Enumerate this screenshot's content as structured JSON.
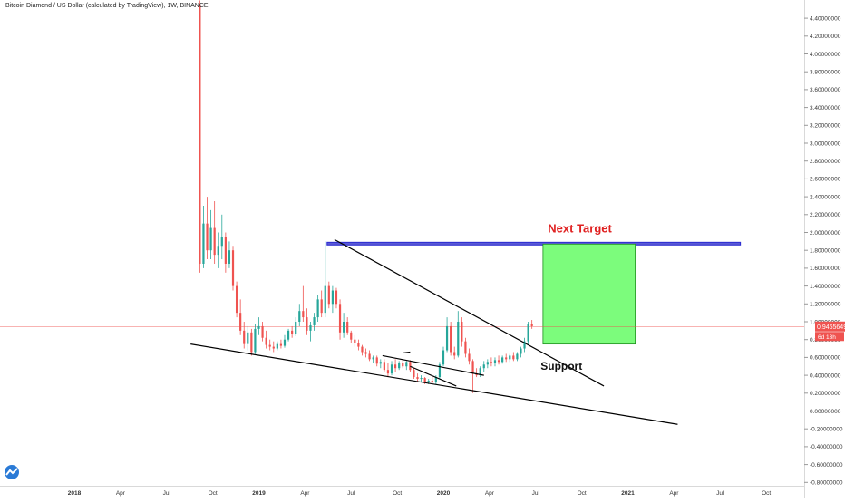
{
  "chart_data": {
    "type": "candlestick",
    "title": "Bitcoin Diamond / US Dollar (calculated by TradingView), 1W, BINANCE",
    "ylim": [
      -0.8,
      4.5
    ],
    "y_ticks": [
      4.4,
      4.2,
      4.0,
      3.8,
      3.6,
      3.4,
      3.2,
      3.0,
      2.8,
      2.6,
      2.4,
      2.2,
      2.0,
      1.8,
      1.6,
      1.4,
      1.2,
      1.0,
      0.8,
      0.6,
      0.4,
      0.2,
      0.0,
      -0.2,
      -0.4,
      -0.6,
      -0.8
    ],
    "y_tick_labels": [
      "4.40000000",
      "4.20000000",
      "4.00000000",
      "3.80000000",
      "3.60000000",
      "3.40000000",
      "3.20000000",
      "3.00000000",
      "2.80000000",
      "2.60000000",
      "2.40000000",
      "2.20000000",
      "2.00000000",
      "1.80000000",
      "1.60000000",
      "1.40000000",
      "1.20000000",
      "1.00000000",
      "0.80000000",
      "0.60000000",
      "0.40000000",
      "0.20000000",
      "0.00000000",
      "-0.20000000",
      "-0.40000000",
      "-0.60000000",
      "-0.80000000"
    ],
    "x_ticks": [
      {
        "label": "2018",
        "t": 2018.0,
        "year": true
      },
      {
        "label": "Apr",
        "t": 2018.25
      },
      {
        "label": "Jul",
        "t": 2018.5
      },
      {
        "label": "Oct",
        "t": 2018.75
      },
      {
        "label": "2019",
        "t": 2019.0,
        "year": true
      },
      {
        "label": "Apr",
        "t": 2019.25
      },
      {
        "label": "Jul",
        "t": 2019.5
      },
      {
        "label": "Oct",
        "t": 2019.75
      },
      {
        "label": "2020",
        "t": 2020.0,
        "year": true
      },
      {
        "label": "Apr",
        "t": 2020.25
      },
      {
        "label": "Jul",
        "t": 2020.5
      },
      {
        "label": "Oct",
        "t": 2020.75
      },
      {
        "label": "2021",
        "t": 2021.0,
        "year": true
      },
      {
        "label": "Apr",
        "t": 2021.25
      },
      {
        "label": "Jul",
        "t": 2021.5
      },
      {
        "label": "Oct",
        "t": 2021.75
      }
    ],
    "candles": [
      {
        "t": 2018.68,
        "o": 4.55,
        "h": 4.6,
        "l": 1.55,
        "c": 1.65
      },
      {
        "t": 2018.7,
        "o": 1.65,
        "h": 2.3,
        "l": 1.6,
        "c": 2.1
      },
      {
        "t": 2018.72,
        "o": 2.1,
        "h": 2.4,
        "l": 1.7,
        "c": 1.8
      },
      {
        "t": 2018.74,
        "o": 1.8,
        "h": 2.25,
        "l": 1.7,
        "c": 2.05
      },
      {
        "t": 2018.76,
        "o": 2.05,
        "h": 2.35,
        "l": 1.65,
        "c": 1.75
      },
      {
        "t": 2018.78,
        "o": 1.75,
        "h": 2.0,
        "l": 1.6,
        "c": 1.85
      },
      {
        "t": 2018.8,
        "o": 1.85,
        "h": 2.2,
        "l": 1.7,
        "c": 1.95
      },
      {
        "t": 2018.82,
        "o": 1.95,
        "h": 2.0,
        "l": 1.55,
        "c": 1.65
      },
      {
        "t": 2018.84,
        "o": 1.65,
        "h": 1.9,
        "l": 1.6,
        "c": 1.8
      },
      {
        "t": 2018.86,
        "o": 1.8,
        "h": 1.85,
        "l": 1.35,
        "c": 1.4
      },
      {
        "t": 2018.88,
        "o": 1.4,
        "h": 1.45,
        "l": 1.05,
        "c": 1.1
      },
      {
        "t": 2018.9,
        "o": 1.1,
        "h": 1.25,
        "l": 0.85,
        "c": 0.9
      },
      {
        "t": 2018.92,
        "o": 0.9,
        "h": 1.0,
        "l": 0.7,
        "c": 0.75
      },
      {
        "t": 2018.94,
        "o": 0.75,
        "h": 0.95,
        "l": 0.68,
        "c": 0.88
      },
      {
        "t": 2018.96,
        "o": 0.88,
        "h": 0.92,
        "l": 0.62,
        "c": 0.66
      },
      {
        "t": 2018.98,
        "o": 0.66,
        "h": 0.98,
        "l": 0.64,
        "c": 0.92
      },
      {
        "t": 2019.0,
        "o": 0.92,
        "h": 1.05,
        "l": 0.85,
        "c": 0.95
      },
      {
        "t": 2019.02,
        "o": 0.95,
        "h": 1.0,
        "l": 0.78,
        "c": 0.82
      },
      {
        "t": 2019.04,
        "o": 0.82,
        "h": 0.9,
        "l": 0.7,
        "c": 0.74
      },
      {
        "t": 2019.06,
        "o": 0.74,
        "h": 0.8,
        "l": 0.68,
        "c": 0.72
      },
      {
        "t": 2019.08,
        "o": 0.72,
        "h": 0.78,
        "l": 0.66,
        "c": 0.7
      },
      {
        "t": 2019.1,
        "o": 0.7,
        "h": 0.78,
        "l": 0.68,
        "c": 0.75
      },
      {
        "t": 2019.12,
        "o": 0.75,
        "h": 0.8,
        "l": 0.7,
        "c": 0.73
      },
      {
        "t": 2019.14,
        "o": 0.73,
        "h": 0.85,
        "l": 0.71,
        "c": 0.8
      },
      {
        "t": 2019.16,
        "o": 0.8,
        "h": 0.92,
        "l": 0.78,
        "c": 0.9
      },
      {
        "t": 2019.18,
        "o": 0.9,
        "h": 0.95,
        "l": 0.82,
        "c": 0.86
      },
      {
        "t": 2019.2,
        "o": 0.86,
        "h": 1.05,
        "l": 0.84,
        "c": 1.0
      },
      {
        "t": 2019.22,
        "o": 1.0,
        "h": 1.2,
        "l": 0.95,
        "c": 1.12
      },
      {
        "t": 2019.24,
        "o": 1.12,
        "h": 1.4,
        "l": 1.0,
        "c": 1.05
      },
      {
        "t": 2019.26,
        "o": 1.05,
        "h": 1.15,
        "l": 0.85,
        "c": 0.9
      },
      {
        "t": 2019.28,
        "o": 0.9,
        "h": 1.0,
        "l": 0.78,
        "c": 0.96
      },
      {
        "t": 2019.3,
        "o": 0.96,
        "h": 1.1,
        "l": 0.9,
        "c": 1.05
      },
      {
        "t": 2019.32,
        "o": 1.05,
        "h": 1.3,
        "l": 1.0,
        "c": 1.25
      },
      {
        "t": 2019.34,
        "o": 1.25,
        "h": 1.35,
        "l": 1.05,
        "c": 1.1
      },
      {
        "t": 2019.36,
        "o": 1.1,
        "h": 1.9,
        "l": 1.05,
        "c": 1.4
      },
      {
        "t": 2019.38,
        "o": 1.4,
        "h": 1.45,
        "l": 1.15,
        "c": 1.2
      },
      {
        "t": 2019.4,
        "o": 1.2,
        "h": 1.4,
        "l": 1.1,
        "c": 1.35
      },
      {
        "t": 2019.42,
        "o": 1.35,
        "h": 1.38,
        "l": 1.15,
        "c": 1.2
      },
      {
        "t": 2019.44,
        "o": 1.2,
        "h": 1.25,
        "l": 0.8,
        "c": 0.88
      },
      {
        "t": 2019.46,
        "o": 0.88,
        "h": 1.1,
        "l": 0.82,
        "c": 1.0
      },
      {
        "t": 2019.48,
        "o": 1.0,
        "h": 1.05,
        "l": 0.85,
        "c": 0.88
      },
      {
        "t": 2019.5,
        "o": 0.88,
        "h": 0.9,
        "l": 0.76,
        "c": 0.8
      },
      {
        "t": 2019.52,
        "o": 0.8,
        "h": 0.85,
        "l": 0.72,
        "c": 0.76
      },
      {
        "t": 2019.54,
        "o": 0.76,
        "h": 0.8,
        "l": 0.68,
        "c": 0.72
      },
      {
        "t": 2019.56,
        "o": 0.72,
        "h": 0.74,
        "l": 0.62,
        "c": 0.66
      },
      {
        "t": 2019.58,
        "o": 0.66,
        "h": 0.7,
        "l": 0.6,
        "c": 0.64
      },
      {
        "t": 2019.6,
        "o": 0.64,
        "h": 0.68,
        "l": 0.56,
        "c": 0.58
      },
      {
        "t": 2019.62,
        "o": 0.58,
        "h": 0.62,
        "l": 0.54,
        "c": 0.6
      },
      {
        "t": 2019.64,
        "o": 0.6,
        "h": 0.62,
        "l": 0.5,
        "c": 0.53
      },
      {
        "t": 2019.66,
        "o": 0.53,
        "h": 0.58,
        "l": 0.48,
        "c": 0.55
      },
      {
        "t": 2019.68,
        "o": 0.55,
        "h": 0.58,
        "l": 0.44,
        "c": 0.46
      },
      {
        "t": 2019.7,
        "o": 0.46,
        "h": 0.54,
        "l": 0.38,
        "c": 0.42
      },
      {
        "t": 2019.72,
        "o": 0.42,
        "h": 0.56,
        "l": 0.4,
        "c": 0.52
      },
      {
        "t": 2019.74,
        "o": 0.52,
        "h": 0.58,
        "l": 0.44,
        "c": 0.48
      },
      {
        "t": 2019.76,
        "o": 0.48,
        "h": 0.56,
        "l": 0.46,
        "c": 0.54
      },
      {
        "t": 2019.78,
        "o": 0.54,
        "h": 0.58,
        "l": 0.48,
        "c": 0.5
      },
      {
        "t": 2019.8,
        "o": 0.5,
        "h": 0.56,
        "l": 0.46,
        "c": 0.55
      },
      {
        "t": 2019.82,
        "o": 0.55,
        "h": 0.57,
        "l": 0.44,
        "c": 0.46
      },
      {
        "t": 2019.84,
        "o": 0.46,
        "h": 0.48,
        "l": 0.36,
        "c": 0.38
      },
      {
        "t": 2019.86,
        "o": 0.38,
        "h": 0.42,
        "l": 0.32,
        "c": 0.36
      },
      {
        "t": 2019.88,
        "o": 0.36,
        "h": 0.4,
        "l": 0.32,
        "c": 0.37
      },
      {
        "t": 2019.9,
        "o": 0.37,
        "h": 0.38,
        "l": 0.3,
        "c": 0.33
      },
      {
        "t": 2019.92,
        "o": 0.33,
        "h": 0.36,
        "l": 0.3,
        "c": 0.34
      },
      {
        "t": 2019.94,
        "o": 0.34,
        "h": 0.38,
        "l": 0.31,
        "c": 0.32
      },
      {
        "t": 2019.96,
        "o": 0.32,
        "h": 0.4,
        "l": 0.3,
        "c": 0.38
      },
      {
        "t": 2019.98,
        "o": 0.38,
        "h": 0.55,
        "l": 0.36,
        "c": 0.52
      },
      {
        "t": 2020.0,
        "o": 0.52,
        "h": 0.72,
        "l": 0.5,
        "c": 0.68
      },
      {
        "t": 2020.02,
        "o": 0.68,
        "h": 1.05,
        "l": 0.66,
        "c": 0.95
      },
      {
        "t": 2020.04,
        "o": 0.95,
        "h": 1.0,
        "l": 0.62,
        "c": 0.66
      },
      {
        "t": 2020.06,
        "o": 0.66,
        "h": 0.72,
        "l": 0.58,
        "c": 0.62
      },
      {
        "t": 2020.08,
        "o": 0.62,
        "h": 1.12,
        "l": 0.6,
        "c": 1.0
      },
      {
        "t": 2020.1,
        "o": 1.0,
        "h": 1.05,
        "l": 0.72,
        "c": 0.78
      },
      {
        "t": 2020.12,
        "o": 0.78,
        "h": 0.82,
        "l": 0.6,
        "c": 0.64
      },
      {
        "t": 2020.14,
        "o": 0.64,
        "h": 0.7,
        "l": 0.52,
        "c": 0.56
      },
      {
        "t": 2020.16,
        "o": 0.56,
        "h": 0.58,
        "l": 0.2,
        "c": 0.42
      },
      {
        "t": 2020.18,
        "o": 0.42,
        "h": 0.48,
        "l": 0.38,
        "c": 0.4
      },
      {
        "t": 2020.2,
        "o": 0.4,
        "h": 0.5,
        "l": 0.38,
        "c": 0.48
      },
      {
        "t": 2020.22,
        "o": 0.48,
        "h": 0.56,
        "l": 0.44,
        "c": 0.52
      },
      {
        "t": 2020.24,
        "o": 0.52,
        "h": 0.58,
        "l": 0.48,
        "c": 0.55
      },
      {
        "t": 2020.26,
        "o": 0.55,
        "h": 0.6,
        "l": 0.5,
        "c": 0.54
      },
      {
        "t": 2020.28,
        "o": 0.54,
        "h": 0.6,
        "l": 0.5,
        "c": 0.57
      },
      {
        "t": 2020.3,
        "o": 0.57,
        "h": 0.62,
        "l": 0.52,
        "c": 0.55
      },
      {
        "t": 2020.32,
        "o": 0.55,
        "h": 0.62,
        "l": 0.53,
        "c": 0.6
      },
      {
        "t": 2020.34,
        "o": 0.6,
        "h": 0.64,
        "l": 0.55,
        "c": 0.58
      },
      {
        "t": 2020.36,
        "o": 0.58,
        "h": 0.64,
        "l": 0.55,
        "c": 0.62
      },
      {
        "t": 2020.38,
        "o": 0.62,
        "h": 0.66,
        "l": 0.56,
        "c": 0.58
      },
      {
        "t": 2020.4,
        "o": 0.58,
        "h": 0.66,
        "l": 0.56,
        "c": 0.64
      },
      {
        "t": 2020.42,
        "o": 0.64,
        "h": 0.72,
        "l": 0.6,
        "c": 0.7
      },
      {
        "t": 2020.44,
        "o": 0.7,
        "h": 0.82,
        "l": 0.66,
        "c": 0.78
      },
      {
        "t": 2020.46,
        "o": 0.78,
        "h": 1.0,
        "l": 0.75,
        "c": 0.97
      },
      {
        "t": 2020.48,
        "o": 0.97,
        "h": 1.02,
        "l": 0.92,
        "c": 0.95
      }
    ],
    "current_price": 0.9465649,
    "price_label": "0.94656490",
    "countdown_label": "6d 13h",
    "trendlines": [
      {
        "from": {
          "t": 2019.41,
          "v": 1.92
        },
        "to": {
          "t": 2020.87,
          "v": 0.28
        }
      },
      {
        "from": {
          "t": 2018.63,
          "v": 0.75
        },
        "to": {
          "t": 2021.27,
          "v": -0.15
        }
      },
      {
        "from": {
          "t": 2019.67,
          "v": 0.62
        },
        "to": {
          "t": 2020.22,
          "v": 0.4
        }
      },
      {
        "from": {
          "t": 2019.82,
          "v": 0.5
        },
        "to": {
          "t": 2020.07,
          "v": 0.28
        }
      },
      {
        "from": {
          "t": 2019.78,
          "v": 0.65
        },
        "to": {
          "t": 2019.82,
          "v": 0.66
        }
      }
    ],
    "resistance_band": {
      "t_start": 2019.37,
      "t_end": 2021.61,
      "v_low": 1.86,
      "v_high": 1.89
    },
    "target_box": {
      "t_start": 2020.54,
      "t_end": 2021.04,
      "v_low": 0.75,
      "v_high": 1.87
    },
    "annotations": [
      {
        "text": "Next Target",
        "t": 2020.74,
        "v": 2.0,
        "color": "#e02020"
      },
      {
        "text": "Support",
        "t": 2020.64,
        "v": 0.46,
        "color": "#111111"
      }
    ],
    "colors": {
      "up": "#26a69a",
      "down": "#ef5350",
      "trendline": "#000000",
      "band_fill": "#5a5ad6",
      "band_stroke": "#2b2bd0",
      "box_fill": "#7cfc7c",
      "box_stroke": "#1c8f1c",
      "price_line": "#ef5350"
    }
  }
}
